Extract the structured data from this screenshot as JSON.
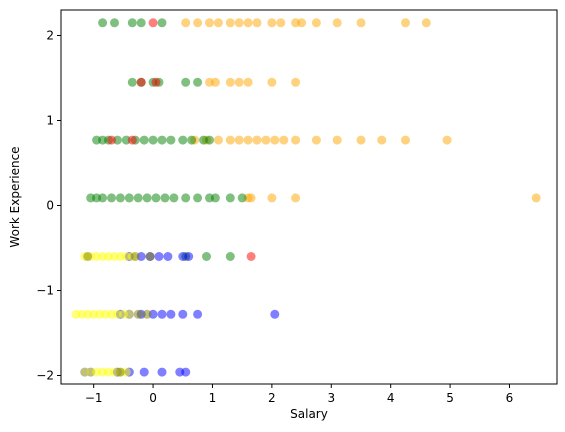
{
  "chart_data": {
    "type": "scatter",
    "title": "",
    "xlabel": "Salary",
    "ylabel": "Work Experience",
    "xlim": [
      -1.55,
      6.8
    ],
    "ylim": [
      -2.1,
      2.3
    ],
    "xticks": [
      -1,
      0,
      1,
      2,
      3,
      4,
      5,
      6
    ],
    "yticks": [
      -2,
      -1,
      0,
      1,
      2
    ],
    "tick_labels_x": [
      "−1",
      "0",
      "1",
      "2",
      "3",
      "4",
      "5",
      "6"
    ],
    "tick_labels_y": [
      "−2",
      "−1",
      "0",
      "1",
      "2"
    ],
    "grid": false,
    "legend": "none",
    "series": [
      {
        "color": "#ffa500",
        "points": [
          [
            0.55,
            2.15
          ],
          [
            0.75,
            2.15
          ],
          [
            0.95,
            2.15
          ],
          [
            1.1,
            2.15
          ],
          [
            1.3,
            2.15
          ],
          [
            1.45,
            2.15
          ],
          [
            1.6,
            2.15
          ],
          [
            1.75,
            2.15
          ],
          [
            2.0,
            2.15
          ],
          [
            2.15,
            2.15
          ],
          [
            2.4,
            2.15
          ],
          [
            2.5,
            2.15
          ],
          [
            2.75,
            2.15
          ],
          [
            3.1,
            2.15
          ],
          [
            3.5,
            2.15
          ],
          [
            4.25,
            2.15
          ],
          [
            4.6,
            2.15
          ],
          [
            0.95,
            1.45
          ],
          [
            1.05,
            1.45
          ],
          [
            1.3,
            1.45
          ],
          [
            1.45,
            1.45
          ],
          [
            1.6,
            1.45
          ],
          [
            2.0,
            1.45
          ],
          [
            2.4,
            1.45
          ],
          [
            0.7,
            0.77
          ],
          [
            0.9,
            0.77
          ],
          [
            1.1,
            0.77
          ],
          [
            1.3,
            0.77
          ],
          [
            1.45,
            0.77
          ],
          [
            1.6,
            0.77
          ],
          [
            1.75,
            0.77
          ],
          [
            1.9,
            0.77
          ],
          [
            2.05,
            0.77
          ],
          [
            2.2,
            0.77
          ],
          [
            2.4,
            0.77
          ],
          [
            2.75,
            0.77
          ],
          [
            3.1,
            0.77
          ],
          [
            3.5,
            0.77
          ],
          [
            3.85,
            0.77
          ],
          [
            4.25,
            0.77
          ],
          [
            4.95,
            0.77
          ],
          [
            1.6,
            0.09
          ],
          [
            1.65,
            0.09
          ],
          [
            2.0,
            0.09
          ],
          [
            2.4,
            0.09
          ],
          [
            6.45,
            0.09
          ]
        ]
      },
      {
        "color": "#008000",
        "points": [
          [
            -0.85,
            2.15
          ],
          [
            -0.65,
            2.15
          ],
          [
            -0.35,
            2.15
          ],
          [
            -0.2,
            2.15
          ],
          [
            0.15,
            2.15
          ],
          [
            -0.35,
            1.45
          ],
          [
            -0.2,
            1.45
          ],
          [
            0.0,
            1.45
          ],
          [
            0.1,
            1.45
          ],
          [
            0.55,
            1.45
          ],
          [
            0.75,
            1.45
          ],
          [
            -0.95,
            0.77
          ],
          [
            -0.85,
            0.77
          ],
          [
            -0.75,
            0.77
          ],
          [
            -0.6,
            0.77
          ],
          [
            -0.45,
            0.77
          ],
          [
            -0.3,
            0.77
          ],
          [
            -0.15,
            0.77
          ],
          [
            0.0,
            0.77
          ],
          [
            0.15,
            0.77
          ],
          [
            0.3,
            0.77
          ],
          [
            0.5,
            0.77
          ],
          [
            0.65,
            0.77
          ],
          [
            0.85,
            0.77
          ],
          [
            0.95,
            0.77
          ],
          [
            -1.05,
            0.09
          ],
          [
            -0.95,
            0.09
          ],
          [
            -0.85,
            0.09
          ],
          [
            -0.7,
            0.09
          ],
          [
            -0.55,
            0.09
          ],
          [
            -0.4,
            0.09
          ],
          [
            -0.25,
            0.09
          ],
          [
            -0.1,
            0.09
          ],
          [
            0.05,
            0.09
          ],
          [
            0.2,
            0.09
          ],
          [
            0.35,
            0.09
          ],
          [
            0.55,
            0.09
          ],
          [
            0.75,
            0.09
          ],
          [
            0.95,
            0.09
          ],
          [
            1.05,
            0.09
          ],
          [
            1.3,
            0.09
          ],
          [
            1.5,
            0.09
          ],
          [
            0.55,
            -0.6
          ],
          [
            0.9,
            -0.6
          ],
          [
            1.3,
            -0.6
          ]
        ]
      },
      {
        "color": "#ff0000",
        "points": [
          [
            0.0,
            2.15
          ],
          [
            -0.2,
            1.45
          ],
          [
            0.05,
            1.45
          ],
          [
            -0.7,
            0.77
          ],
          [
            -0.35,
            0.77
          ],
          [
            1.65,
            -0.6
          ]
        ]
      },
      {
        "color": "#0000ff",
        "points": [
          [
            -0.4,
            -0.6
          ],
          [
            -0.2,
            -0.6
          ],
          [
            -0.05,
            -0.6
          ],
          [
            0.1,
            -0.6
          ],
          [
            0.25,
            -0.6
          ],
          [
            0.5,
            -0.6
          ],
          [
            0.6,
            -0.6
          ],
          [
            -0.55,
            -1.28
          ],
          [
            -0.4,
            -1.28
          ],
          [
            -0.2,
            -1.28
          ],
          [
            0.0,
            -1.28
          ],
          [
            0.15,
            -1.28
          ],
          [
            0.3,
            -1.28
          ],
          [
            0.5,
            -1.28
          ],
          [
            0.75,
            -1.28
          ],
          [
            2.05,
            -1.28
          ],
          [
            -1.15,
            -1.96
          ],
          [
            -1.05,
            -1.96
          ],
          [
            -0.6,
            -1.96
          ],
          [
            -0.4,
            -1.96
          ],
          [
            -0.15,
            -1.96
          ],
          [
            0.15,
            -1.96
          ],
          [
            0.45,
            -1.96
          ],
          [
            0.55,
            -1.96
          ]
        ]
      },
      {
        "color": "#ffff00",
        "points": [
          [
            -1.15,
            -0.6
          ],
          [
            -1.05,
            -0.6
          ],
          [
            -0.95,
            -0.6
          ],
          [
            -0.85,
            -0.6
          ],
          [
            -0.75,
            -0.6
          ],
          [
            -0.65,
            -0.6
          ],
          [
            -0.55,
            -0.6
          ],
          [
            -0.45,
            -0.6
          ],
          [
            -0.35,
            -0.6
          ],
          [
            -1.3,
            -1.28
          ],
          [
            -1.2,
            -1.28
          ],
          [
            -1.1,
            -1.28
          ],
          [
            -1.0,
            -1.28
          ],
          [
            -0.9,
            -1.28
          ],
          [
            -0.8,
            -1.28
          ],
          [
            -0.7,
            -1.28
          ],
          [
            -0.6,
            -1.28
          ],
          [
            -0.5,
            -1.28
          ],
          [
            -0.4,
            -1.28
          ],
          [
            -1.15,
            -1.96
          ],
          [
            -1.05,
            -1.96
          ],
          [
            -0.95,
            -1.96
          ],
          [
            -0.85,
            -1.96
          ],
          [
            -0.75,
            -1.96
          ],
          [
            -0.65,
            -1.96
          ],
          [
            -0.55,
            -1.96
          ],
          [
            -0.45,
            -1.96
          ]
        ]
      },
      {
        "color": "#808000",
        "points": [
          [
            -1.1,
            -0.6
          ],
          [
            -0.3,
            -0.6
          ],
          [
            -0.05,
            -0.6
          ],
          [
            -0.25,
            -1.28
          ],
          [
            -0.1,
            -1.28
          ],
          [
            -0.55,
            -1.96
          ]
        ]
      }
    ]
  }
}
